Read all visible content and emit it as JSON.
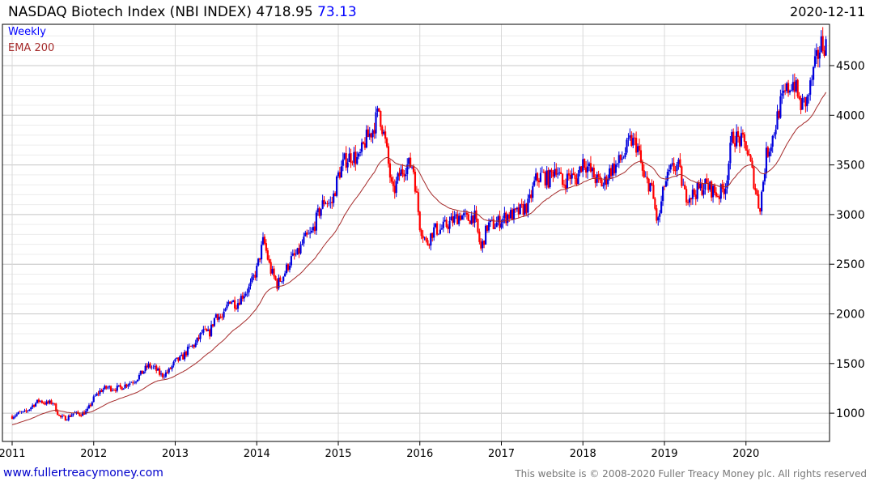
{
  "header": {
    "title": "NASDAQ Biotech Index (NBI INDEX)",
    "last": "4718.95",
    "change": "73.13",
    "date": "2020-12-11"
  },
  "legend": {
    "series": "Weekly",
    "ema": "EMA 200"
  },
  "footer": {
    "link": "www.fullertreacymoney.com",
    "copyright": "This website is © 2008-2020 Fuller Treacy Money plc. All rights reserved"
  },
  "colors": {
    "up": "#0000dd",
    "down": "#ff0000",
    "ema": "#a52a2a",
    "grid": "#d8d8d8"
  },
  "chart_data": {
    "type": "candlestick",
    "title": "NASDAQ Biotech Index (NBI INDEX)",
    "frequency": "Weekly",
    "x_ticks": [
      "2011",
      "2012",
      "2013",
      "2014",
      "2015",
      "2016",
      "2017",
      "2018",
      "2019",
      "2020"
    ],
    "y_ticks": [
      1000,
      1500,
      2000,
      2500,
      3000,
      3500,
      4000,
      4500
    ],
    "ylim": [
      750,
      4850
    ],
    "xlim": [
      2010.97,
      2020.98
    ],
    "monthly_close_start": 2011.0,
    "monthly_close": [
      970,
      1000,
      1010,
      1080,
      1130,
      1100,
      1110,
      960,
      950,
      1000,
      990,
      1020,
      1150,
      1230,
      1260,
      1250,
      1260,
      1300,
      1330,
      1400,
      1480,
      1450,
      1380,
      1420,
      1520,
      1560,
      1650,
      1700,
      1820,
      1800,
      2000,
      1950,
      2150,
      2100,
      2200,
      2270,
      2450,
      2750,
      2450,
      2300,
      2400,
      2550,
      2600,
      2750,
      2800,
      3000,
      3150,
      3100,
      3400,
      3550,
      3600,
      3550,
      3750,
      3850,
      4050,
      3700,
      3200,
      3400,
      3500,
      3500,
      2900,
      2700,
      2850,
      2850,
      2900,
      2950,
      3000,
      2950,
      3000,
      2650,
      2900,
      2900,
      2950,
      3000,
      3000,
      3050,
      3100,
      3350,
      3400,
      3350,
      3500,
      3300,
      3400,
      3350,
      3550,
      3450,
      3350,
      3300,
      3450,
      3500,
      3600,
      3750,
      3700,
      3350,
      3300,
      2900,
      3300,
      3450,
      3500,
      3200,
      3200,
      3250,
      3300,
      3250,
      3200,
      3300,
      3800,
      3750,
      3700,
      3400,
      3050,
      3600,
      3800,
      4100,
      4250,
      4350,
      4100,
      4150,
      4450,
      4720
    ],
    "ema_period": 200,
    "ema_start": 880
  }
}
